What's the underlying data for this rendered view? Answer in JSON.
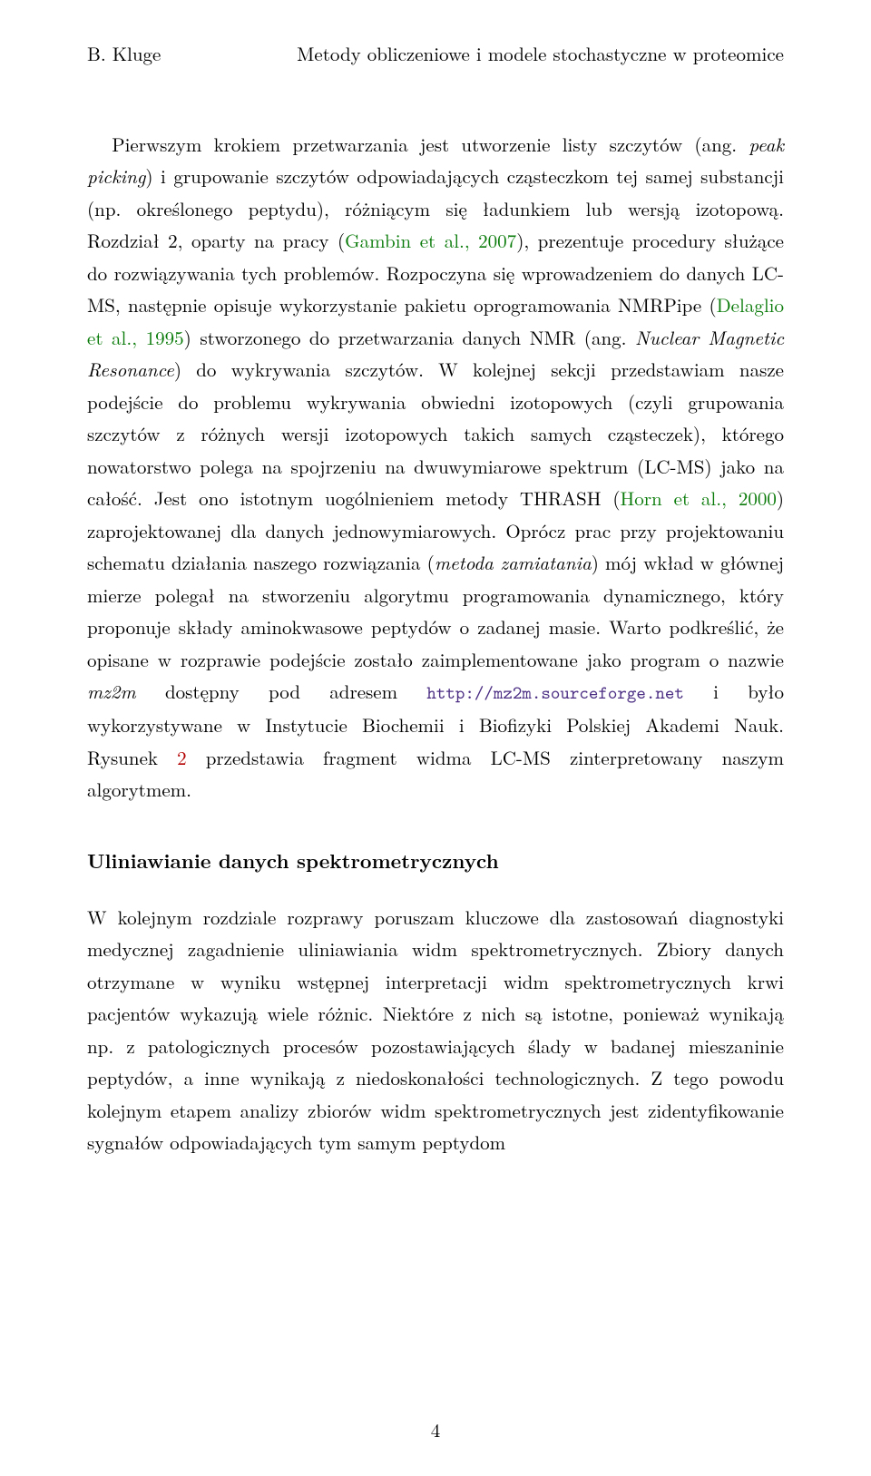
{
  "header": {
    "author": "B. Kluge",
    "title": "Metody obliczeniowe i modele stochastyczne w proteomice"
  },
  "para1": {
    "t1": "Pierwszym krokiem przetwarzania jest utworzenie listy szczytów (ang. ",
    "i1": "peak picking",
    "t2": ") i grupowanie szczytów odpowiadających cząsteczkom tej samej substancji (np. określonego peptydu), różniącym się ładunkiem lub wersją izotopową. Rozdział 2, oparty na pracy (",
    "r1": "Gambin et al., 2007",
    "t3": "), prezentuje procedury służące do rozwiązywania tych problemów. Rozpoczyna się wprowadzeniem do danych LC-MS, następnie opisuje wykorzystanie pakietu oprogramowania NMRPipe (",
    "r2": "Delaglio et al., 1995",
    "t4": ") stworzonego do przetwarzania danych NMR (ang. ",
    "i2": "Nuclear Magnetic Resonance",
    "t5": ") do wykrywania szczytów. W kolejnej sekcji przedstawiam nasze podejście do problemu wykrywania obwiedni izotopowych (czyli grupowania szczytów z różnych wersji izotopowych takich samych cząsteczek), którego nowatorstwo polega na spojrzeniu na dwuwymiarowe spektrum (LC-MS) jako na całość. Jest ono istotnym uogólnieniem metody THRASH (",
    "r3": "Horn et al., 2000",
    "t6": ") zaprojektowanej dla danych jednowymiarowych. Oprócz prac przy projektowaniu schematu działania naszego rozwiązania (",
    "i3": "metoda zamiatania",
    "t7": ") mój wkład w głównej mierze polegał na stworzeniu algorytmu programowania dynamicznego, który proponuje składy aminokwasowe peptydów o zadanej masie. Warto podkreślić, że opisane w rozprawie podejście zostało zaimplementowane jako program o nazwie ",
    "i4": "mz2m",
    "t8": " dostępny pod adresem ",
    "url": "http://mz2m.sourceforge.net",
    "t9": " i było wykorzystywane w Instytucie Biochemii i Biofizyki Polskiej Akademi Nauk. Rysunek ",
    "fig": "2",
    "t10": " przedstawia fragment widma LC-MS zinterpretowany naszym algorytmem."
  },
  "section_heading": "Uliniawianie danych spektrometrycznych",
  "para2": "W kolejnym rozdziale rozprawy poruszam kluczowe dla zastosowań diagnostyki medycznej zagadnienie uliniawiania widm spektrometrycznych. Zbiory danych otrzymane w wyniku wstępnej interpretacji widm spektrometrycznych krwi pacjentów wykazują wiele różnic. Niektóre z nich są istotne, ponieważ wynikają np. z patologicznych procesów pozostawiających ślady w badanej mieszaninie peptydów, a inne wynikają z niedoskonałości technologicznych. Z tego powodu kolejnym etapem analizy zbiorów widm spektrometrycznych jest zidentyfikowanie sygnałów odpowiadających tym samym peptydom",
  "page_number": "4"
}
